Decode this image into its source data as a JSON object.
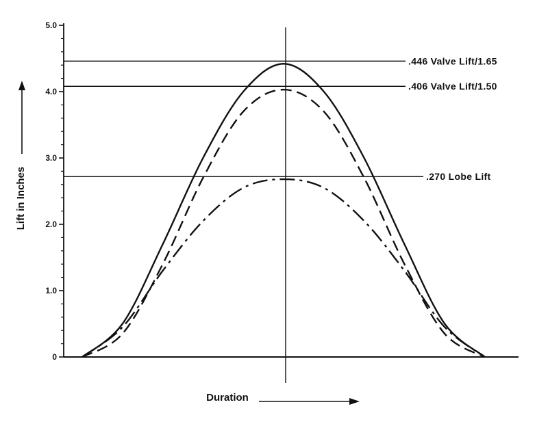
{
  "chart_data": {
    "type": "line",
    "title": "",
    "xlabel": "Duration",
    "ylabel": "Lift in Inches",
    "ylim": [
      0,
      5
    ],
    "y_ticks": [
      "0",
      "1.0",
      "2.0",
      "3.0",
      "4.0",
      "5.0"
    ],
    "y_tick_values": [
      0,
      1,
      2,
      3,
      4,
      5
    ],
    "x_range": [
      0,
      1
    ],
    "series": [
      {
        "style": "solid",
        "peak": 4.42,
        "values_x": [
          0,
          0.1,
          0.2,
          0.3,
          0.4,
          0.5,
          0.6,
          0.7,
          0.8,
          0.9,
          1.0
        ],
        "values_y": [
          0,
          0.5,
          1.7,
          3.0,
          4.0,
          4.42,
          4.0,
          3.0,
          1.7,
          0.5,
          0
        ]
      },
      {
        "style": "dashed",
        "peak": 4.03,
        "values_x": [
          0,
          0.1,
          0.2,
          0.3,
          0.4,
          0.5,
          0.6,
          0.7,
          0.8,
          0.9,
          1.0
        ],
        "values_y": [
          0,
          0.35,
          1.4,
          2.7,
          3.7,
          4.03,
          3.7,
          2.7,
          1.4,
          0.35,
          0
        ]
      },
      {
        "style": "dash-dot",
        "peak": 2.68,
        "values_x": [
          0,
          0.1,
          0.2,
          0.3,
          0.4,
          0.5,
          0.6,
          0.7,
          0.8,
          0.9,
          1.0
        ],
        "values_y": [
          0,
          0.45,
          1.3,
          2.05,
          2.55,
          2.68,
          2.55,
          2.05,
          1.3,
          0.45,
          0
        ]
      }
    ],
    "reference_lines": [
      {
        "y": 4.46,
        "label": ".446 Valve Lift/1.65"
      },
      {
        "y": 4.08,
        "label": ".406 Valve Lift/1.50"
      },
      {
        "y": 2.72,
        "label": ".270 Lobe Lift"
      }
    ],
    "grid": false,
    "legend": "none"
  }
}
